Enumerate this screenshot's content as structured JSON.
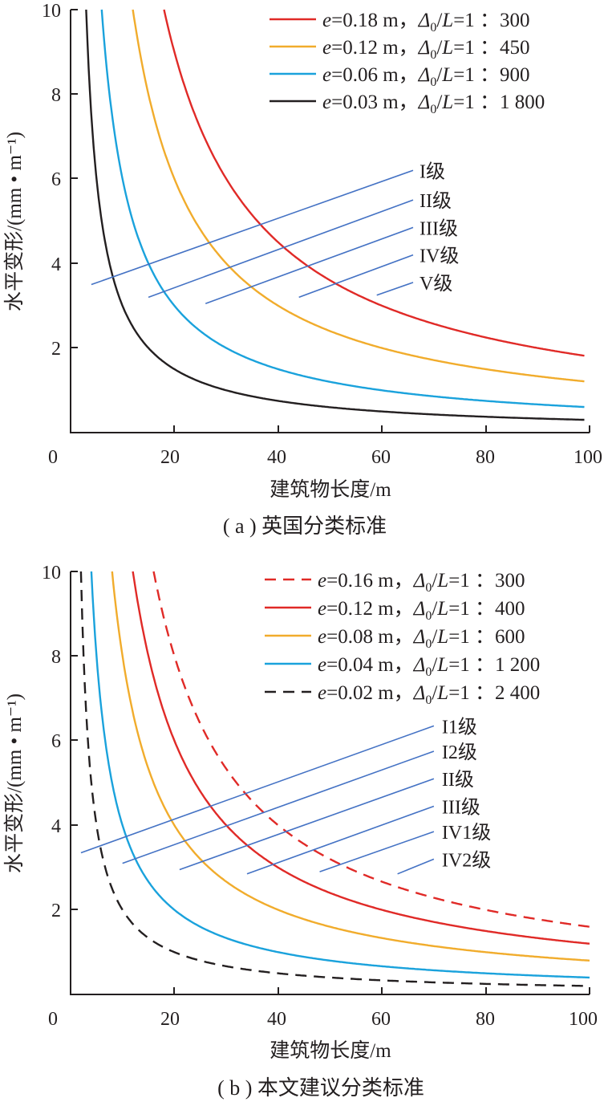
{
  "colors": {
    "red": "#e02a27",
    "orange": "#f1ac2c",
    "blue": "#1aa2dc",
    "black": "#231f20",
    "level_line": "#4472c4"
  },
  "charts": [
    {
      "caption": "( a ) 英国分类标准",
      "chart_data": {
        "type": "line",
        "title": "",
        "xlabel": "建筑物长度/m",
        "ylabel": "水平变形/(mm • m⁻¹)",
        "xlim": [
          0,
          100
        ],
        "ylim": [
          0,
          10
        ],
        "xticks": [
          "0",
          "20",
          "40",
          "60",
          "80",
          "100"
        ],
        "yticks": [
          "2",
          "4",
          "6",
          "8",
          "10"
        ],
        "grid": false,
        "legend_position": "top-right",
        "series": [
          {
            "name_parts": [
              "e",
              "=0.18 m，",
              "Δ",
              "0",
              "/",
              "L",
              "=1 ：300"
            ],
            "k": 180,
            "color": "#e02a27",
            "dash": "",
            "x_range": [
              18,
              99
            ]
          },
          {
            "name_parts": [
              "e",
              "=0.12 m，",
              "Δ",
              "0",
              "/",
              "L",
              "=1 ：450"
            ],
            "k": 120,
            "color": "#f1ac2c",
            "dash": "",
            "x_range": [
              12,
              99
            ]
          },
          {
            "name_parts": [
              "e",
              "=0.06 m，",
              "Δ",
              "0",
              "/",
              "L",
              "=1 ：900"
            ],
            "k": 60,
            "color": "#1aa2dc",
            "dash": "",
            "x_range": [
              6,
              99
            ]
          },
          {
            "name_parts": [
              "e",
              "=0.03 m，",
              "Δ",
              "0",
              "/",
              "L",
              "=1 ：1 800"
            ],
            "k": 30,
            "color": "#231f20",
            "dash": "",
            "x_range": [
              3,
              99
            ]
          }
        ],
        "level_lines": [
          {
            "label": "I级",
            "x": [
              4,
              66
            ],
            "y": [
              3.5,
              6.2
            ]
          },
          {
            "label": "II级",
            "x": [
              15,
              66
            ],
            "y": [
              3.2,
              5.5
            ]
          },
          {
            "label": "III级",
            "x": [
              26,
              66
            ],
            "y": [
              3.05,
              4.85
            ]
          },
          {
            "label": "IV级",
            "x": [
              44,
              66
            ],
            "y": [
              3.2,
              4.2
            ]
          },
          {
            "label": "V级",
            "x": [
              59,
              66
            ],
            "y": [
              3.25,
              3.55
            ]
          }
        ]
      }
    },
    {
      "caption": "( b ) 本文建议分类标准",
      "chart_data": {
        "type": "line",
        "title": "",
        "xlabel": "建筑物长度/m",
        "ylabel": "水平变形/(mm • m⁻¹)",
        "xlim": [
          0,
          100
        ],
        "ylim": [
          0,
          10
        ],
        "xticks": [
          "0",
          "20",
          "40",
          "60",
          "80",
          "100"
        ],
        "yticks": [
          "2",
          "4",
          "6",
          "8",
          "10"
        ],
        "grid": false,
        "legend_position": "top-right",
        "series": [
          {
            "name_parts": [
              "e",
              "=0.16 m，",
              "Δ",
              "0",
              "/",
              "L",
              "=1 ：300"
            ],
            "k": 160,
            "color": "#e02a27",
            "dash": "14 9",
            "x_range": [
              16,
              100
            ]
          },
          {
            "name_parts": [
              "e",
              "=0.12 m，",
              "Δ",
              "0",
              "/",
              "L",
              "=1 ：400"
            ],
            "k": 120,
            "color": "#e02a27",
            "dash": "",
            "x_range": [
              12,
              100
            ]
          },
          {
            "name_parts": [
              "e",
              "=0.08 m，",
              "Δ",
              "0",
              "/",
              "L",
              "=1 ：600"
            ],
            "k": 80,
            "color": "#f1ac2c",
            "dash": "",
            "x_range": [
              8,
              100
            ]
          },
          {
            "name_parts": [
              "e",
              "=0.04 m，",
              "Δ",
              "0",
              "/",
              "L",
              "=1 ：1 200"
            ],
            "k": 40,
            "color": "#1aa2dc",
            "dash": "",
            "x_range": [
              4,
              100
            ]
          },
          {
            "name_parts": [
              "e",
              "=0.02 m，",
              "Δ",
              "0",
              "/",
              "L",
              "=1 ：2 400"
            ],
            "k": 20,
            "color": "#231f20",
            "dash": "14 9",
            "x_range": [
              2,
              100
            ]
          }
        ],
        "level_lines": [
          {
            "label": "I1级",
            "x": [
              2,
              70
            ],
            "y": [
              3.35,
              6.35
            ]
          },
          {
            "label": "I2级",
            "x": [
              10,
              70
            ],
            "y": [
              3.1,
              5.75
            ]
          },
          {
            "label": "II级",
            "x": [
              21,
              70
            ],
            "y": [
              2.95,
              5.1
            ]
          },
          {
            "label": "III级",
            "x": [
              34,
              70
            ],
            "y": [
              2.85,
              4.45
            ]
          },
          {
            "label": "IV1级",
            "x": [
              48,
              70
            ],
            "y": [
              2.9,
              3.85
            ]
          },
          {
            "label": "IV2级",
            "x": [
              63,
              70
            ],
            "y": [
              2.85,
              3.2
            ]
          }
        ]
      }
    }
  ]
}
